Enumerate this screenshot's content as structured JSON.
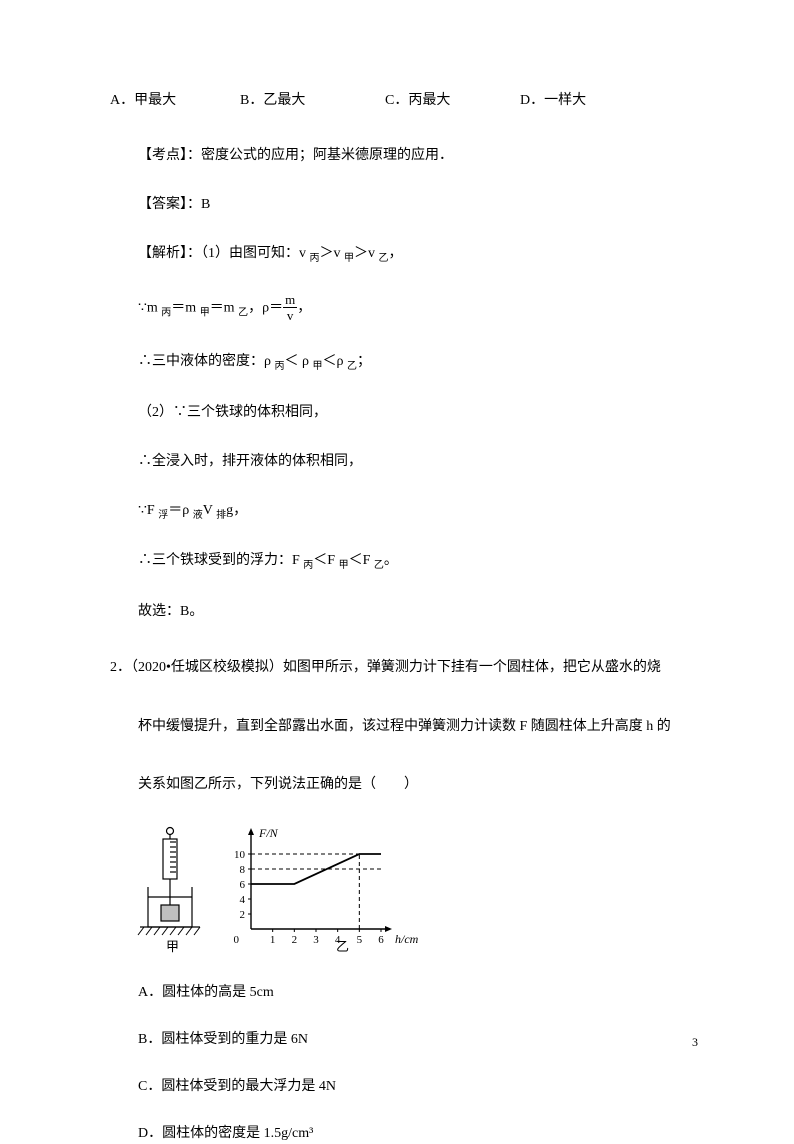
{
  "options": {
    "a": "A．甲最大",
    "b": "B．乙最大",
    "c": "C．丙最大",
    "d": "D．一样大"
  },
  "topic": "【考点】：密度公式的应用；阿基米德原理的应用．",
  "answer": "【答案】：B",
  "explain_lead": "【解析】：（1）由图可知：v ",
  "explain_tail": "，",
  "line_mass_a": "∵m ",
  "line_mass_b": "＝m ",
  "line_mass_c": "＝m ",
  "line_mass_d": "，ρ＝",
  "line_mass_e": "，",
  "frac_num": "m",
  "frac_den": "v",
  "line_density_a": "∴三中液体的密度：ρ ",
  "line_density_b": "；",
  "line_vol": "（2）∵三个铁球的体积相同，",
  "line_immerse": "∴全浸入时，排开液体的体积相同，",
  "line_fbuoy_a": "∵F ",
  "line_fbuoy_b": "＝ρ ",
  "line_fbuoy_c": "V ",
  "line_fbuoy_d": "g，",
  "line_conc_a": "∴三个铁球受到的浮力：F ",
  "line_conc_b": "。",
  "line_pick": "故选：B。",
  "q2_l1": "2．（2020•任城区校级模拟）如图甲所示，弹簧测力计下挂有一个圆柱体，把它从盛水的烧",
  "q2_l2": "杯中缓慢提升，直到全部露出水面，该过程中弹簧测力计读数 F 随圆柱体上升高度 h 的",
  "q2_l3": "关系如图乙所示，下列说法正确的是（　　）",
  "choice_a": "A．圆柱体的高是 5cm",
  "choice_b": "B．圆柱体受到的重力是 6N",
  "choice_c": "C．圆柱体受到的最大浮力是 4N",
  "choice_d": "D．圆柱体的密度是 1.5g/cm³",
  "pagenum": "3",
  "sub": {
    "jia": "甲",
    "yi": "乙",
    "bing": "丙",
    "fu": "浮",
    "ye": "液",
    "pai": "排"
  },
  "rel": {
    "gt": "＞",
    "lt": "＜"
  },
  "fig_jia_label": "甲",
  "fig_yi_label": "乙",
  "chart": {
    "y_label": "F/N",
    "x_label": "h/cm",
    "y_ticks": [
      "2",
      "4",
      "6",
      "8",
      "10"
    ],
    "x_ticks": [
      "1",
      "2",
      "3",
      "4",
      "5",
      "6"
    ],
    "axis_color": "#000000",
    "dash_color": "#000000",
    "line_color": "#000000",
    "x_max": 6,
    "y_max": 12,
    "points": [
      [
        0,
        6
      ],
      [
        2,
        6
      ],
      [
        5,
        10
      ],
      [
        6,
        10
      ]
    ],
    "dash_y": [
      8,
      10
    ],
    "dash_xy": [
      [
        5,
        10
      ]
    ]
  }
}
